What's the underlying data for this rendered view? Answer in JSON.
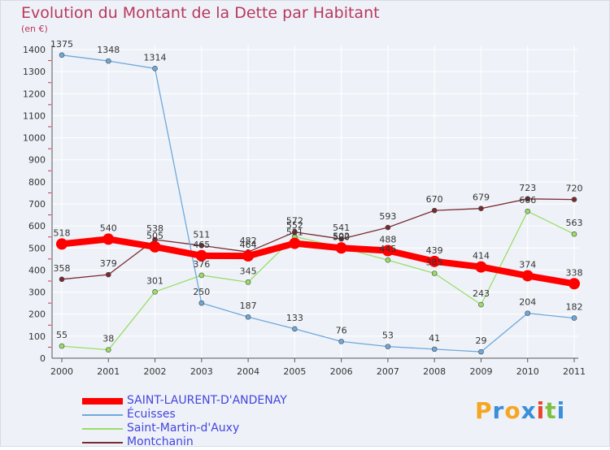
{
  "title": "Evolution du Montant de la Dette par Habitant",
  "unit": "(en €)",
  "logo": {
    "text": "Proxiti",
    "letters": [
      "P",
      "r",
      "o",
      "x",
      "i",
      "t",
      "i"
    ],
    "colors": [
      "#f5a623",
      "#3a8fd8",
      "#f5a623",
      "#3a8fd8",
      "#e8452c",
      "#7cc142",
      "#3a8fd8"
    ]
  },
  "chart_data": {
    "type": "line",
    "x": [
      "2000",
      "2001",
      "2002",
      "2003",
      "2004",
      "2005",
      "2006",
      "2007",
      "2008",
      "2009",
      "2010",
      "2011"
    ],
    "ylim": [
      0,
      1400
    ],
    "yticks": [
      "0",
      "100",
      "200",
      "300",
      "400",
      "500",
      "600",
      "700",
      "800",
      "900",
      "1000",
      "1100",
      "1200",
      "1300",
      "1400"
    ],
    "grid": true,
    "legend_position": "bottom-left",
    "series": [
      {
        "name": "SAINT-LAURENT-D'ANDENAY",
        "color": "#ff0000",
        "width": 8,
        "marker": 7,
        "values": [
          518,
          540,
          505,
          465,
          464,
          521,
          500,
          488,
          439,
          414,
          374,
          338
        ],
        "labels": [
          "518",
          "540",
          "505",
          "465",
          "464",
          "521",
          "500",
          "488",
          "439",
          "414",
          "374",
          "338"
        ]
      },
      {
        "name": "Écuisses",
        "color": "#6fa8dc",
        "width": 1.3,
        "marker": 3,
        "values": [
          1375,
          1348,
          1314,
          250,
          187,
          133,
          76,
          53,
          41,
          29,
          204,
          182
        ],
        "labels": [
          "1375",
          "1348",
          "1314",
          "250",
          "187",
          "133",
          "76",
          "53",
          "41",
          "29",
          "204",
          "182"
        ]
      },
      {
        "name": "Saint-Martin-d'Auxy",
        "color": "#99dd66",
        "width": 1.3,
        "marker": 3,
        "values": [
          55,
          38,
          301,
          376,
          345,
          552,
          502,
          445,
          385,
          243,
          666,
          563
        ],
        "labels": [
          "55",
          "38",
          "301",
          "376",
          "345",
          "552",
          "502",
          "445",
          "385",
          "243",
          "666",
          "563"
        ]
      },
      {
        "name": "Montchanin",
        "color": "#7a2a30",
        "width": 1.3,
        "marker": 3,
        "values": [
          358,
          379,
          538,
          511,
          482,
          572,
          541,
          593,
          670,
          679,
          723,
          720
        ],
        "labels": [
          "358",
          "379",
          "538",
          "511",
          "482",
          "572",
          "541",
          "593",
          "670",
          "679",
          "723",
          "720"
        ]
      }
    ]
  }
}
